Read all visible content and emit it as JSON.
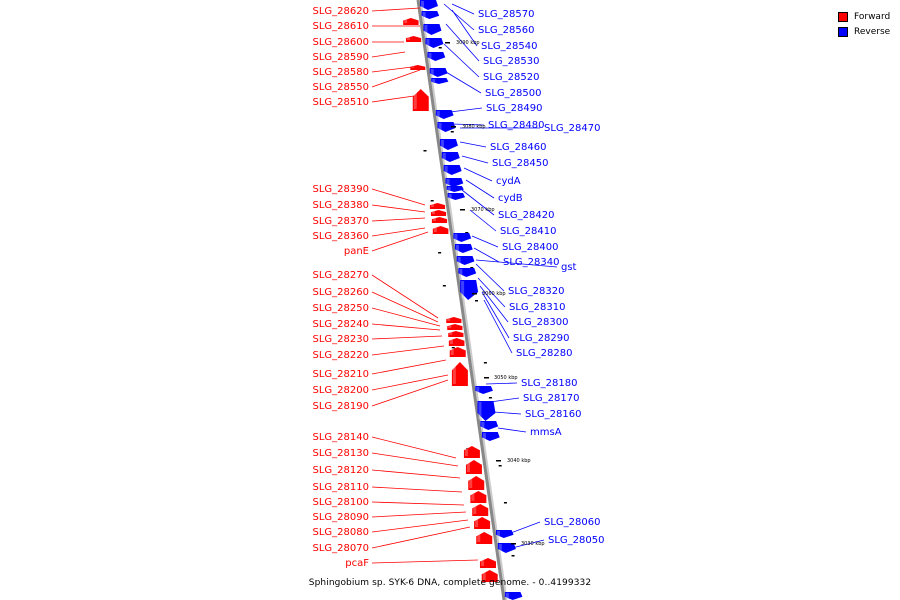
{
  "colors": {
    "forward": "#ff0000",
    "reverse": "#0000ff",
    "backbone": "#888888"
  },
  "legend": [
    {
      "label": "Forward",
      "color": "#ff0000"
    },
    {
      "label": "Reverse",
      "color": "#0000ff"
    }
  ],
  "caption": "Sphingobium sp. SYK-6 DNA, complete genome. - 0..4199332",
  "ticks": [
    "3090 kbp",
    "3080 kbp",
    "3070 kbp",
    "3060 kbp",
    "3050 kbp",
    "3040 kbp",
    "3030 kbp"
  ],
  "forward_genes": [
    "SLG_28620",
    "SLG_28610",
    "SLG_28600",
    "SLG_28590",
    "SLG_28580",
    "SLG_28550",
    "SLG_28510",
    "SLG_28390",
    "SLG_28380",
    "SLG_28370",
    "SLG_28360",
    "panE",
    "SLG_28270",
    "SLG_28260",
    "SLG_28250",
    "SLG_28240",
    "SLG_28230",
    "SLG_28220",
    "SLG_28210",
    "SLG_28200",
    "SLG_28190",
    "SLG_28140",
    "SLG_28130",
    "SLG_28120",
    "SLG_28110",
    "SLG_28100",
    "SLG_28090",
    "SLG_28080",
    "SLG_28070",
    "pcaF"
  ],
  "reverse_genes": [
    "SLG_28570",
    "SLG_28560",
    "SLG_28540",
    "SLG_28530",
    "SLG_28520",
    "SLG_28500",
    "SLG_28490",
    "SLG_28480",
    "SLG_28470",
    "SLG_28460",
    "SLG_28450",
    "cydA",
    "cydB",
    "SLG_28420",
    "SLG_28410",
    "SLG_28400",
    "SLG_28340",
    "gst",
    "SLG_28320",
    "SLG_28310",
    "SLG_28300",
    "SLG_28290",
    "SLG_28280",
    "SLG_28180",
    "SLG_28170",
    "SLG_28160",
    "mmsA",
    "SLG_28060",
    "SLG_28050"
  ]
}
